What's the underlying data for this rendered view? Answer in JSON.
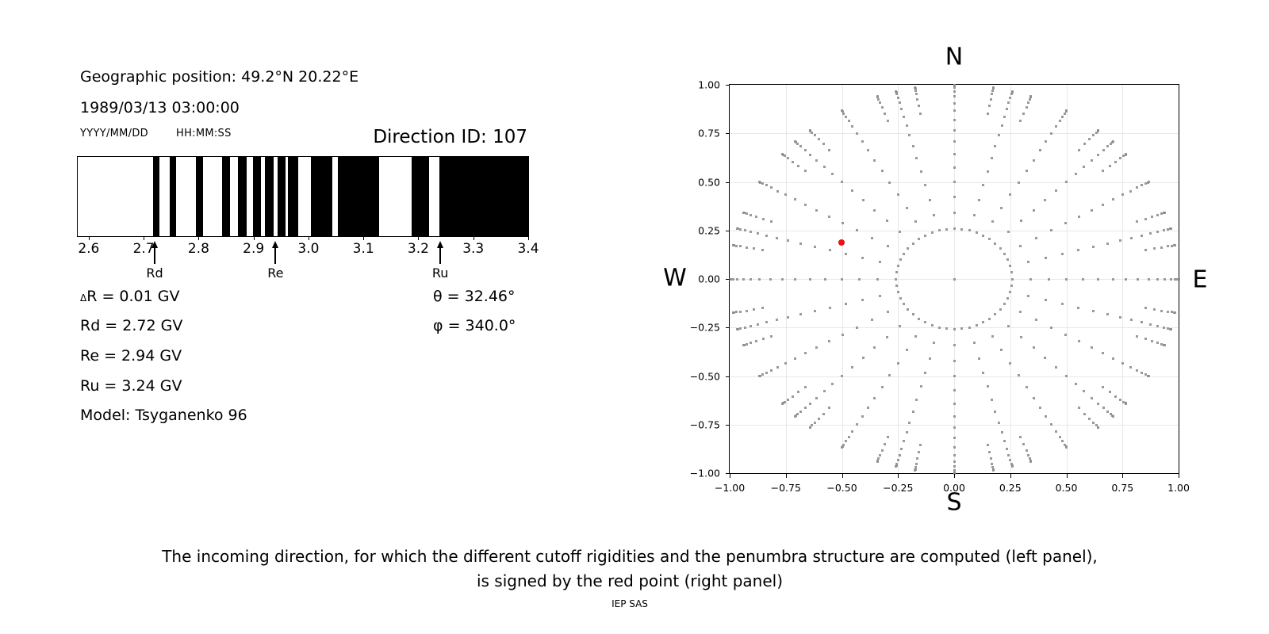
{
  "header": {
    "geo": "Geographic position: 49.2°N 20.22°E",
    "datetime": "1989/03/13 03:00:00",
    "date_format": "YYYY/MM/DD",
    "time_format": "HH:MM:SS",
    "direction_id": "Direction ID: 107"
  },
  "info": {
    "delta_symbol": "Δ",
    "delta_rest": "R = 0.01 GV",
    "rd": "Rd = 2.72 GV",
    "re": "Re = 2.94 GV",
    "ru": "Ru = 3.24 GV",
    "model": "Model: Tsyganenko 96",
    "theta": "θ = 32.46°",
    "phi": "φ = 340.0°"
  },
  "caption": {
    "line1": "The incoming direction, for which the different cutoff rigidities and the penumbra structure are computed (left panel),",
    "line2": "is signed by the red point (right panel)",
    "credit": "IEP SAS"
  },
  "chart_data": [
    {
      "id": "penumbra-barcode",
      "type": "bar",
      "title": "",
      "xlim": [
        2.58,
        3.4
      ],
      "xticks": [
        2.6,
        2.7,
        2.8,
        2.9,
        3.0,
        3.1,
        3.2,
        3.3,
        3.4
      ],
      "xtick_labels": [
        "2.6",
        "2.7",
        "2.8",
        "2.9",
        "3.0",
        "3.1",
        "3.2",
        "3.3",
        "3.4"
      ],
      "band_color": "#000000",
      "black_bands_gv": [
        [
          2.717,
          2.729
        ],
        [
          2.747,
          2.759
        ],
        [
          2.795,
          2.808
        ],
        [
          2.842,
          2.857
        ],
        [
          2.872,
          2.887
        ],
        [
          2.899,
          2.914
        ],
        [
          2.921,
          2.937
        ],
        [
          2.944,
          2.958
        ],
        [
          2.963,
          2.982
        ],
        [
          3.004,
          3.044
        ],
        [
          3.053,
          3.128
        ],
        [
          3.188,
          3.22
        ],
        [
          3.238,
          3.4
        ]
      ],
      "arrows": [
        {
          "label": "Rd",
          "gv": 2.72
        },
        {
          "label": "Re",
          "gv": 2.94
        },
        {
          "label": "Ru",
          "gv": 3.24
        }
      ]
    },
    {
      "id": "direction-grid",
      "type": "scatter",
      "xlim": [
        -1,
        1
      ],
      "ylim": [
        -1,
        1
      ],
      "grid": true,
      "grid_color": "#e8e8e8",
      "tick_values": [
        -1,
        -0.75,
        -0.5,
        -0.25,
        0,
        0.25,
        0.5,
        0.75,
        1
      ],
      "tick_labels": [
        "−1.00",
        "−0.75",
        "−0.50",
        "−0.25",
        "0.00",
        "0.25",
        "0.50",
        "0.75",
        "1.00"
      ],
      "compass": {
        "top": "N",
        "bottom": "S",
        "left": "W",
        "right": "E"
      },
      "gray_grid": {
        "color": "#8c8c8c",
        "radius_rule": "sin(zenith)",
        "center_dot": true,
        "ring": {
          "radius": 0.2588,
          "count": 48
        },
        "main_spokes": {
          "azimuth_step_deg": 15,
          "zenith_start_deg": 20,
          "zenith_end_deg": 90,
          "zenith_step_deg": 5
        },
        "rim_spokes": {
          "azimuth_step_deg": 10,
          "skip_azimuth_multiple_of_deg": 30,
          "zenith_start_deg": 60,
          "zenith_end_deg": 90,
          "zenith_step_deg": 5
        }
      },
      "red_point": {
        "x": -0.501,
        "y": 0.186,
        "color": "#ee1111"
      }
    }
  ]
}
